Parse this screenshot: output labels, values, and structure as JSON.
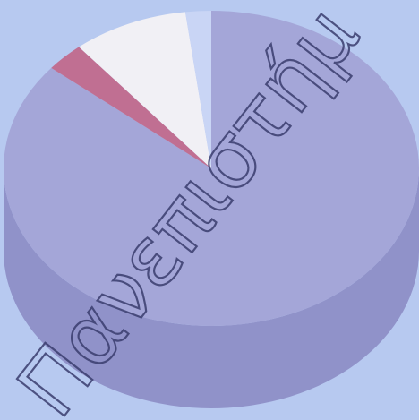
{
  "chart_data": {
    "type": "pie3d",
    "values": [
      86,
      3,
      9,
      2
    ],
    "colors": [
      "#a4a6d8",
      "#c06f92",
      "#f1f0f5",
      "#c9d5f5"
    ],
    "side_color": "#9092c9",
    "background": "#b7c9f0",
    "annotation": "Πανεπιστήμ"
  }
}
